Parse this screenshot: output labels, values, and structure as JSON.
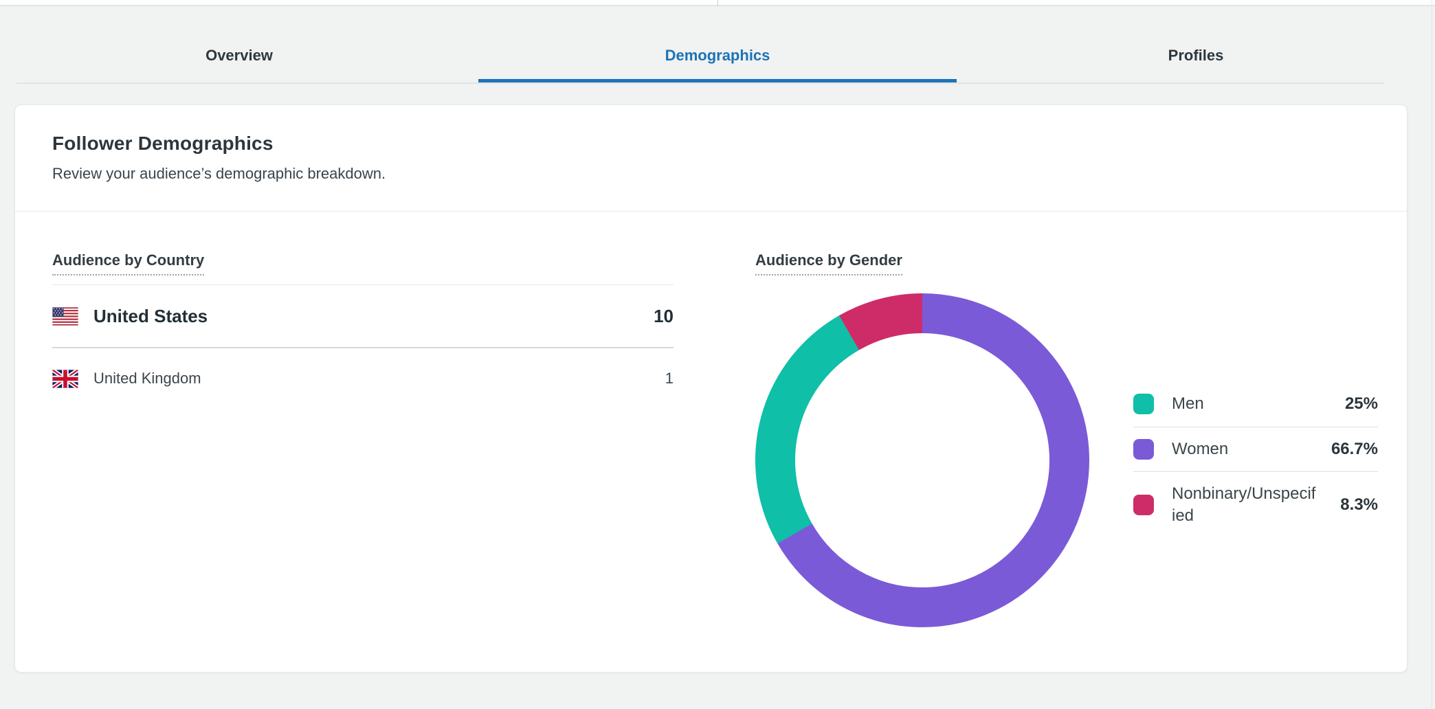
{
  "tabs": [
    {
      "label": "Overview",
      "active": false
    },
    {
      "label": "Demographics",
      "active": true
    },
    {
      "label": "Profiles",
      "active": false
    }
  ],
  "card": {
    "title": "Follower Demographics",
    "subtitle": "Review your audience’s demographic breakdown."
  },
  "country_section": {
    "heading": "Audience by Country",
    "rows": [
      {
        "icon": "us-flag-icon",
        "name": "United States",
        "value": "10"
      },
      {
        "icon": "gb-flag-icon",
        "name": "United Kingdom",
        "value": "1"
      }
    ]
  },
  "gender_section": {
    "heading": "Audience by Gender",
    "legend": [
      {
        "label": "Men",
        "value": "25%",
        "color": "#0fbfa7"
      },
      {
        "label": "Women",
        "value": "66.7%",
        "color": "#7b5ad8"
      },
      {
        "label": "Nonbinary/Unspecified",
        "value": "8.3%",
        "color": "#ce2c69"
      }
    ]
  },
  "chart_data": {
    "type": "pie",
    "title": "Audience by Gender",
    "donut": true,
    "start_angle_deg": 0,
    "direction": "clockwise",
    "legend_position": "right",
    "segments": [
      {
        "label": "Women",
        "value": 66.7,
        "color": "#7b5ad8"
      },
      {
        "label": "Men",
        "value": 25.0,
        "color": "#0fbfa7"
      },
      {
        "label": "Nonbinary/Unspecified",
        "value": 8.3,
        "color": "#ce2c69"
      }
    ]
  },
  "colors": {
    "accent_blue": "#1c73b7",
    "teal": "#0fbfa7",
    "purple": "#7b5ad8",
    "crimson": "#ce2c69",
    "page_background": "#f1f2f2"
  }
}
